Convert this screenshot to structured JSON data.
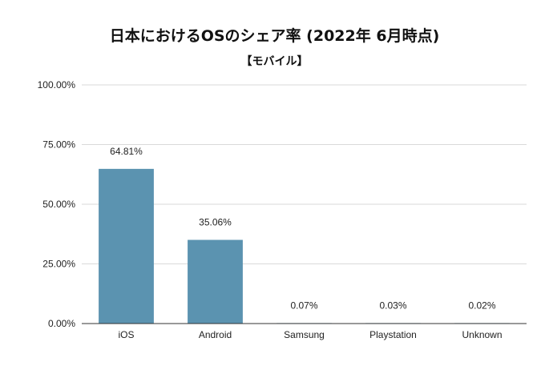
{
  "chart_data": {
    "type": "bar",
    "title": "日本におけるOSのシェア率 (2022年 6月時点)",
    "subtitle": "【モバイル】",
    "categories": [
      "iOS",
      "Android",
      "Samsung",
      "Playstation",
      "Unknown"
    ],
    "values": [
      64.81,
      35.06,
      0.07,
      0.03,
      0.02
    ],
    "data_labels": [
      "64.81%",
      "35.06%",
      "0.07%",
      "0.03%",
      "0.02%"
    ],
    "y_ticks": [
      "0.00%",
      "25.00%",
      "50.00%",
      "75.00%",
      "100.00%"
    ],
    "ylim": [
      0,
      100
    ],
    "grid": true,
    "legend": "none",
    "bar_color": "#5b93b0"
  }
}
